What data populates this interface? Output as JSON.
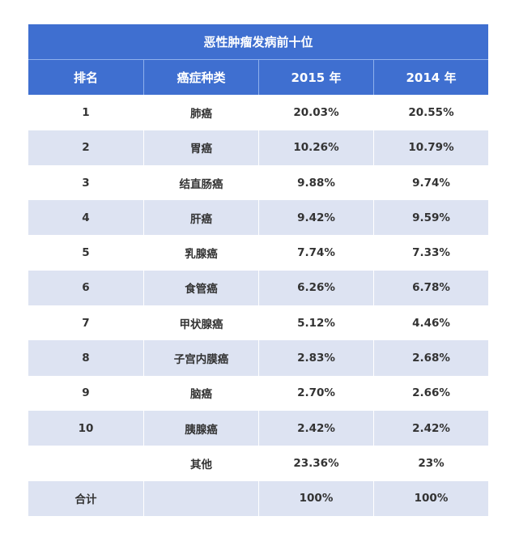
{
  "title": "恶性肿瘤发病前十位",
  "headers": [
    "排名",
    "癌症种类",
    "2015 年",
    "2014 年"
  ],
  "rows": [
    [
      "1",
      "肺癌",
      "20.03%",
      "20.55%"
    ],
    [
      "2",
      "胃癌",
      "10.26%",
      "10.79%"
    ],
    [
      "3",
      "结直肠癌",
      "9.88%",
      "9.74%"
    ],
    [
      "4",
      "肝癌",
      "9.42%",
      "9.59%"
    ],
    [
      "5",
      "乳腺癌",
      "7.74%",
      "7.33%"
    ],
    [
      "6",
      "食管癌",
      "6.26%",
      "6.78%"
    ],
    [
      "7",
      "甲状腺癌",
      "5.12%",
      "4.46%"
    ],
    [
      "8",
      "子宫内膜癌",
      "2.83%",
      "2.68%"
    ],
    [
      "9",
      "脑癌",
      "2.70%",
      "2.66%"
    ],
    [
      "10",
      "胰腺癌",
      "2.42%",
      "2.42%"
    ],
    [
      "",
      "其他",
      "23.36%",
      "23%"
    ],
    [
      "合计",
      "",
      "100%",
      "100%"
    ]
  ],
  "colors": {
    "header": "#3f6fd0",
    "stripe": "#dde3f2"
  }
}
